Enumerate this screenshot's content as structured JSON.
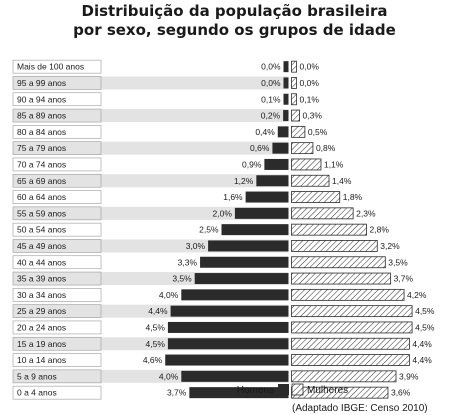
{
  "chart_data": {
    "type": "bar",
    "orientation": "horizontal",
    "subtype": "population-pyramid",
    "title_lines": [
      "Distribuição da população brasileira",
      "por sexo, segundo os grupos de idade"
    ],
    "categories": [
      "Mais de 100 anos",
      "95 a 99 anos",
      "90 a 94 anos",
      "85 a 89 anos",
      "80 a 84 anos",
      "75 a 79 anos",
      "70 a 74 anos",
      "65 a 69 anos",
      "60 a 64 anos",
      "55 a 59 anos",
      "50 a 54 anos",
      "45 a 49 anos",
      "40 a 44 anos",
      "35 a 39 anos",
      "30 a 34 anos",
      "25 a 29 anos",
      "20 a 24 anos",
      "15 a 19 anos",
      "10 a 14 anos",
      "5 a 9 anos",
      "0 a 4 anos"
    ],
    "series": [
      {
        "name": "Homens",
        "color": "#2b2b2b",
        "values": [
          0.0,
          0.0,
          0.1,
          0.2,
          0.4,
          0.6,
          0.9,
          1.2,
          1.6,
          2.0,
          2.5,
          3.0,
          3.3,
          3.5,
          4.0,
          4.4,
          4.5,
          4.5,
          4.6,
          4.0,
          3.7
        ],
        "labels": [
          "0,0%",
          "0,0%",
          "0,1%",
          "0,2%",
          "0,4%",
          "0,6%",
          "0,9%",
          "1,2%",
          "1,6%",
          "2,0%",
          "2,5%",
          "3,0%",
          "3,3%",
          "3,5%",
          "4,0%",
          "4,4%",
          "4,5%",
          "4,5%",
          "4,6%",
          "4,0%",
          "3,7%"
        ]
      },
      {
        "name": "Mulheres",
        "color": "#ffffff",
        "pattern": "diagonal-hatch",
        "values": [
          0.0,
          0.0,
          0.1,
          0.3,
          0.5,
          0.8,
          1.1,
          1.4,
          1.8,
          2.3,
          2.8,
          3.2,
          3.5,
          3.7,
          4.2,
          4.5,
          4.5,
          4.4,
          4.4,
          3.9,
          3.6
        ],
        "labels": [
          "0,0%",
          "0,0%",
          "0,1%",
          "0,3%",
          "0,5%",
          "0,8%",
          "1,1%",
          "1,4%",
          "1,8%",
          "2,3%",
          "2,8%",
          "3,2%",
          "3,5%",
          "3,7%",
          "4,2%",
          "4,5%",
          "4,5%",
          "4,4%",
          "4,4%",
          "3,9%",
          "3,6%"
        ]
      }
    ],
    "legend_placement": "bottom-center",
    "grid": false,
    "row_shading": "alternating-light-gray",
    "source_note": "(Adaptado IBGE: Censo 2010)"
  }
}
